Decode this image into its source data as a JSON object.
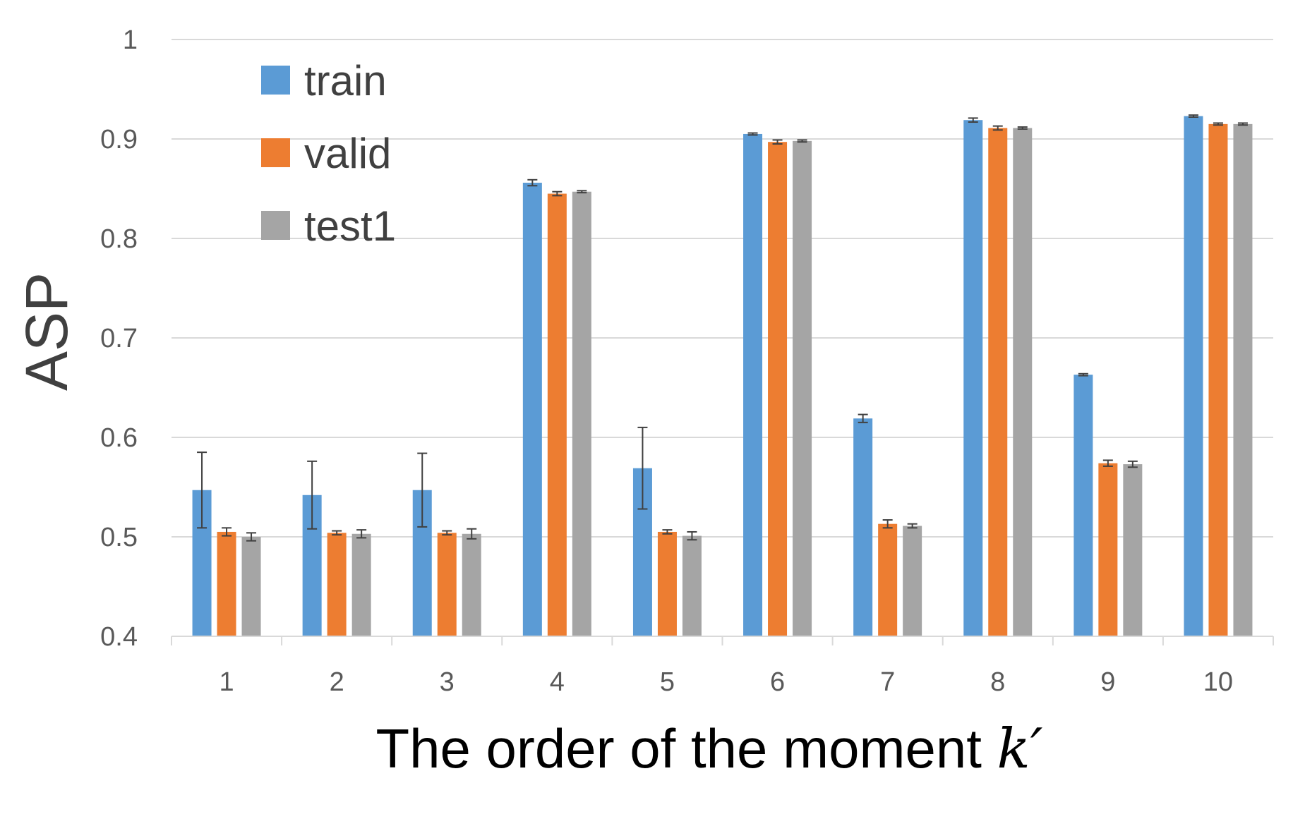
{
  "chart_data": {
    "type": "bar",
    "categories": [
      "1",
      "2",
      "3",
      "4",
      "5",
      "6",
      "7",
      "8",
      "9",
      "10"
    ],
    "series": [
      {
        "name": "train",
        "color": "#5B9BD5",
        "values": [
          0.547,
          0.542,
          0.547,
          0.856,
          0.569,
          0.905,
          0.619,
          0.919,
          0.663,
          0.923
        ],
        "errors": [
          0.038,
          0.034,
          0.037,
          0.003,
          0.041,
          0.001,
          0.004,
          0.002,
          0.001,
          0.001
        ]
      },
      {
        "name": "valid",
        "color": "#ED7D31",
        "values": [
          0.505,
          0.504,
          0.504,
          0.845,
          0.505,
          0.897,
          0.513,
          0.911,
          0.574,
          0.915
        ],
        "errors": [
          0.004,
          0.002,
          0.002,
          0.002,
          0.002,
          0.002,
          0.004,
          0.002,
          0.003,
          0.001
        ]
      },
      {
        "name": "test1",
        "color": "#A5A5A5",
        "values": [
          0.5,
          0.503,
          0.503,
          0.847,
          0.501,
          0.898,
          0.511,
          0.911,
          0.573,
          0.915
        ],
        "errors": [
          0.004,
          0.004,
          0.005,
          0.001,
          0.004,
          0.001,
          0.002,
          0.001,
          0.003,
          0.001
        ]
      }
    ],
    "ylim": [
      0.4,
      1.0
    ],
    "yticks": [
      "0.4",
      "0.5",
      "0.6",
      "0.7",
      "0.8",
      "0.9",
      "1"
    ],
    "ylabel": "ASP",
    "xlabel_text": "The order of the moment ",
    "xlabel_variable": "k′",
    "title": "",
    "grid": true,
    "legend_position": "top-left"
  }
}
